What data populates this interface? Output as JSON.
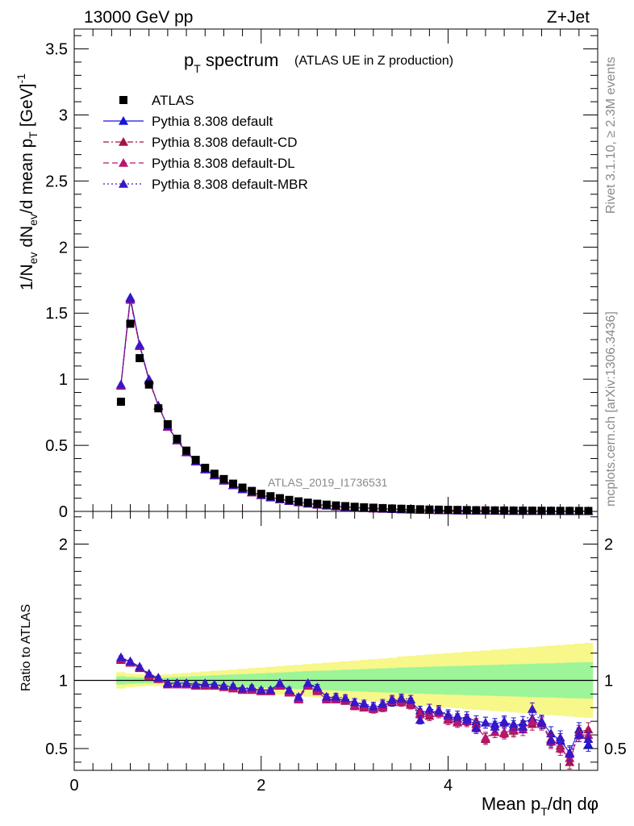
{
  "header": {
    "energy_label": "13000 GeV pp",
    "process_label": "Z+Jet"
  },
  "side_texts": {
    "rivet": "Rivet 3.1.10, ≥ 2.3M events",
    "mcplots": "mcplots.cern.ch [arXiv:1306.3436]"
  },
  "chart_data": [
    {
      "type": "scatter",
      "title_main": "p",
      "title_main_sub": "T",
      "title_main_rest": " spectrum",
      "title_note": "(ATLAS UE in Z production)",
      "ylabel": "1/N_ev dN_ev/d mean p_T [GeV]^-1",
      "xlabel": "Mean p_T/dη dφ",
      "watermark": "ATLAS_2019_I1736531",
      "xlim": [
        0,
        5.6
      ],
      "ylim": [
        0,
        3.65
      ],
      "y_ticks": [
        0,
        0.5,
        1,
        1.5,
        2,
        2.5,
        3,
        3.5
      ],
      "y_tick_labels": [
        "0",
        "0.5",
        "1",
        "1.5",
        "2",
        "2.5",
        "3",
        "3.5"
      ],
      "x_ticks": [
        0,
        2,
        4
      ],
      "x_tick_labels": [
        "0",
        "2",
        "4"
      ],
      "x": [
        0.5,
        0.6,
        0.7,
        0.8,
        0.9,
        1.0,
        1.1,
        1.2,
        1.3,
        1.4,
        1.5,
        1.6,
        1.7,
        1.8,
        1.9,
        2.0,
        2.1,
        2.2,
        2.3,
        2.4,
        2.5,
        2.6,
        2.7,
        2.8,
        2.9,
        3.0,
        3.1,
        3.2,
        3.3,
        3.4,
        3.5,
        3.6,
        3.7,
        3.8,
        3.9,
        4.0,
        4.1,
        4.2,
        4.3,
        4.4,
        4.5,
        4.6,
        4.7,
        4.8,
        4.9,
        5.0,
        5.1,
        5.2,
        5.3,
        5.4,
        5.5
      ],
      "series": [
        {
          "name": "ATLAS",
          "marker": "square",
          "color": "#000000",
          "values": [
            0.83,
            1.42,
            1.16,
            0.96,
            0.78,
            0.66,
            0.55,
            0.46,
            0.39,
            0.33,
            0.285,
            0.245,
            0.21,
            0.18,
            0.155,
            0.133,
            0.115,
            0.1,
            0.087,
            0.076,
            0.066,
            0.058,
            0.051,
            0.045,
            0.04,
            0.035,
            0.031,
            0.028,
            0.025,
            0.022,
            0.02,
            0.018,
            0.016,
            0.014,
            0.013,
            0.012,
            0.011,
            0.01,
            0.009,
            0.008,
            0.0075,
            0.007,
            0.0065,
            0.006,
            0.0055,
            0.005,
            0.0047,
            0.0044,
            0.0041,
            0.0038,
            0.0035
          ]
        },
        {
          "name": "Pythia 8.308 default",
          "marker": "triangle",
          "color": "#1515d8",
          "dash": "",
          "line": "solid",
          "values": [
            0.96,
            1.62,
            1.26,
            1.0,
            0.8,
            0.645,
            0.54,
            0.45,
            0.38,
            0.32,
            0.275,
            0.235,
            0.2,
            0.17,
            0.145,
            0.124,
            0.107,
            0.093,
            0.08,
            0.07,
            0.06,
            0.052,
            0.045,
            0.039,
            0.034,
            0.03,
            0.026,
            0.023,
            0.02,
            0.018,
            0.016,
            0.014,
            0.012,
            0.011,
            0.0095,
            0.0085,
            0.0075,
            0.0068,
            0.006,
            0.0054,
            0.0049,
            0.0044,
            0.004,
            0.0036,
            0.0033,
            0.003,
            0.0027,
            0.0024,
            0.0022,
            0.002,
            0.0018
          ]
        },
        {
          "name": "Pythia 8.308 default-CD",
          "marker": "triangle",
          "color": "#a0154a",
          "dash": "7,3,2,3",
          "line": "dash-dot",
          "values": [
            0.95,
            1.61,
            1.25,
            0.995,
            0.8,
            0.642,
            0.538,
            0.448,
            0.378,
            0.318,
            0.273,
            0.233,
            0.198,
            0.168,
            0.144,
            0.123,
            0.106,
            0.092,
            0.079,
            0.069,
            0.059,
            0.051,
            0.044,
            0.038,
            0.033,
            0.029,
            0.025,
            0.022,
            0.019,
            0.017,
            0.015,
            0.013,
            0.012,
            0.01,
            0.009,
            0.008,
            0.007,
            0.0064,
            0.0056,
            0.005,
            0.0046,
            0.0041,
            0.0037,
            0.0034,
            0.0031,
            0.0028,
            0.0025,
            0.0022,
            0.002,
            0.0019,
            0.0017
          ]
        },
        {
          "name": "Pythia 8.308 default-DL",
          "marker": "triangle",
          "color": "#b8166e",
          "dash": "7,4",
          "line": "dashed",
          "values": [
            0.95,
            1.6,
            1.25,
            0.99,
            0.8,
            0.64,
            0.537,
            0.447,
            0.377,
            0.317,
            0.272,
            0.232,
            0.197,
            0.167,
            0.143,
            0.122,
            0.105,
            0.091,
            0.078,
            0.068,
            0.058,
            0.05,
            0.044,
            0.038,
            0.033,
            0.028,
            0.025,
            0.022,
            0.019,
            0.017,
            0.015,
            0.013,
            0.011,
            0.01,
            0.009,
            0.008,
            0.007,
            0.0063,
            0.0055,
            0.0049,
            0.0045,
            0.004,
            0.0036,
            0.0033,
            0.003,
            0.0027,
            0.0024,
            0.0021,
            0.002,
            0.0018,
            0.0017
          ]
        },
        {
          "name": "Pythia 8.308 default-MBR",
          "marker": "triangle",
          "color": "#3a16c8",
          "dash": "2,3",
          "line": "dotted",
          "values": [
            0.96,
            1.61,
            1.26,
            1.0,
            0.8,
            0.644,
            0.539,
            0.449,
            0.379,
            0.319,
            0.274,
            0.234,
            0.199,
            0.169,
            0.145,
            0.124,
            0.107,
            0.093,
            0.08,
            0.07,
            0.06,
            0.052,
            0.045,
            0.039,
            0.034,
            0.03,
            0.026,
            0.023,
            0.02,
            0.018,
            0.016,
            0.014,
            0.012,
            0.011,
            0.0095,
            0.0085,
            0.0075,
            0.0068,
            0.006,
            0.0054,
            0.0049,
            0.0044,
            0.004,
            0.0036,
            0.0033,
            0.003,
            0.0027,
            0.0024,
            0.0022,
            0.002,
            0.0018
          ]
        }
      ]
    },
    {
      "type": "scatter",
      "ylabel": "Ratio to ATLAS",
      "ylim": [
        0.34,
        2.24
      ],
      "xlim": [
        0,
        5.6
      ],
      "y_ticks": [
        0.5,
        1,
        2
      ],
      "y_tick_labels": [
        "0.5",
        "1",
        "2"
      ],
      "reference_line": 1,
      "band_colors": {
        "stat": "#9cf598",
        "total": "#f7f78a"
      },
      "band_edges_x": [
        0.45,
        0.55,
        0.65,
        0.75,
        0.85,
        0.95,
        1.05,
        1.15,
        1.25,
        1.35,
        1.45,
        1.55,
        1.65,
        1.75,
        1.85,
        1.95,
        2.05,
        2.15,
        2.25,
        2.35,
        2.45,
        2.55,
        2.65,
        2.75,
        2.85,
        2.95,
        3.05,
        3.15,
        3.25,
        3.35,
        3.45,
        3.55,
        3.65,
        3.75,
        3.85,
        3.95,
        4.05,
        4.15,
        4.25,
        4.35,
        4.45,
        4.55,
        4.65,
        4.75,
        4.85,
        4.95,
        5.05,
        5.15,
        5.25,
        5.35,
        5.45,
        5.55
      ],
      "stat_band_halfwidth": [
        0.03,
        0.025,
        0.022,
        0.02,
        0.02,
        0.022,
        0.025,
        0.028,
        0.031,
        0.034,
        0.037,
        0.04,
        0.043,
        0.046,
        0.049,
        0.052,
        0.055,
        0.058,
        0.061,
        0.064,
        0.067,
        0.07,
        0.072,
        0.075,
        0.078,
        0.08,
        0.083,
        0.086,
        0.088,
        0.09,
        0.094,
        0.096,
        0.098,
        0.1,
        0.102,
        0.104,
        0.106,
        0.108,
        0.11,
        0.112,
        0.114,
        0.116,
        0.118,
        0.12,
        0.122,
        0.124,
        0.126,
        0.128,
        0.13,
        0.132,
        0.134
      ],
      "total_band_halfwidth": [
        0.06,
        0.05,
        0.045,
        0.042,
        0.042,
        0.045,
        0.05,
        0.055,
        0.06,
        0.065,
        0.07,
        0.075,
        0.08,
        0.085,
        0.09,
        0.095,
        0.1,
        0.105,
        0.11,
        0.115,
        0.12,
        0.125,
        0.13,
        0.135,
        0.14,
        0.145,
        0.15,
        0.155,
        0.16,
        0.165,
        0.175,
        0.18,
        0.185,
        0.19,
        0.195,
        0.2,
        0.205,
        0.21,
        0.215,
        0.22,
        0.225,
        0.23,
        0.235,
        0.24,
        0.245,
        0.25,
        0.255,
        0.26,
        0.265,
        0.27,
        0.275
      ],
      "series": [
        {
          "name": "Pythia 8.308 default",
          "values": [
            1.16,
            1.14,
            1.1,
            1.04,
            1.02,
            0.98,
            0.98,
            0.98,
            0.97,
            0.97,
            0.97,
            0.96,
            0.95,
            0.94,
            0.94,
            0.93,
            0.93,
            0.98,
            0.92,
            0.87,
            0.98,
            0.94,
            0.88,
            0.87,
            0.85,
            0.84,
            0.82,
            0.8,
            0.82,
            0.84,
            0.86,
            0.84,
            0.78,
            0.76,
            0.78,
            0.74,
            0.72,
            0.73,
            0.7,
            0.69,
            0.68,
            0.7,
            0.66,
            0.69,
            0.72,
            0.7,
            0.61,
            0.56,
            0.47,
            0.64,
            0.53
          ],
          "errors": [
            0.01,
            0.01,
            0.01,
            0.01,
            0.01,
            0.01,
            0.01,
            0.01,
            0.01,
            0.01,
            0.01,
            0.01,
            0.01,
            0.01,
            0.015,
            0.015,
            0.015,
            0.02,
            0.02,
            0.02,
            0.02,
            0.02,
            0.02,
            0.025,
            0.025,
            0.025,
            0.025,
            0.03,
            0.03,
            0.03,
            0.03,
            0.03,
            0.03,
            0.035,
            0.035,
            0.035,
            0.035,
            0.04,
            0.04,
            0.04,
            0.04,
            0.04,
            0.045,
            0.045,
            0.045,
            0.045,
            0.05,
            0.05,
            0.05,
            0.05,
            0.05
          ]
        },
        {
          "name": "Pythia 8.308 default-CD",
          "values": [
            1.15,
            1.13,
            1.09,
            1.04,
            1.01,
            0.97,
            0.98,
            0.97,
            0.96,
            0.97,
            0.96,
            0.96,
            0.95,
            0.93,
            0.93,
            0.92,
            0.92,
            0.97,
            0.91,
            0.86,
            0.97,
            0.93,
            0.87,
            0.86,
            0.85,
            0.82,
            0.81,
            0.79,
            0.81,
            0.86,
            0.85,
            0.83,
            0.76,
            0.74,
            0.77,
            0.72,
            0.7,
            0.71,
            0.68,
            0.57,
            0.62,
            0.62,
            0.63,
            0.66,
            0.68,
            0.69,
            0.57,
            0.52,
            0.4,
            0.62,
            0.64
          ],
          "errors": [
            0.01,
            0.01,
            0.01,
            0.01,
            0.01,
            0.01,
            0.01,
            0.01,
            0.01,
            0.01,
            0.01,
            0.01,
            0.01,
            0.01,
            0.015,
            0.015,
            0.015,
            0.02,
            0.02,
            0.02,
            0.02,
            0.02,
            0.02,
            0.025,
            0.025,
            0.025,
            0.025,
            0.03,
            0.03,
            0.03,
            0.03,
            0.03,
            0.03,
            0.035,
            0.035,
            0.035,
            0.035,
            0.04,
            0.04,
            0.04,
            0.04,
            0.04,
            0.045,
            0.045,
            0.045,
            0.045,
            0.05,
            0.05,
            0.05,
            0.05,
            0.05
          ]
        },
        {
          "name": "Pythia 8.308 default-DL",
          "values": [
            1.16,
            1.13,
            1.1,
            1.03,
            1.01,
            0.98,
            0.97,
            0.97,
            0.96,
            0.96,
            0.96,
            0.95,
            0.94,
            0.93,
            0.93,
            0.92,
            0.92,
            0.96,
            0.91,
            0.86,
            0.96,
            0.92,
            0.86,
            0.86,
            0.86,
            0.81,
            0.8,
            0.79,
            0.8,
            0.85,
            0.84,
            0.82,
            0.75,
            0.76,
            0.76,
            0.71,
            0.69,
            0.7,
            0.66,
            0.58,
            0.62,
            0.61,
            0.64,
            0.64,
            0.7,
            0.68,
            0.55,
            0.5,
            0.43,
            0.6,
            0.6
          ],
          "errors": [
            0.01,
            0.01,
            0.01,
            0.01,
            0.01,
            0.01,
            0.01,
            0.01,
            0.01,
            0.01,
            0.01,
            0.01,
            0.01,
            0.01,
            0.015,
            0.015,
            0.015,
            0.02,
            0.02,
            0.02,
            0.02,
            0.02,
            0.02,
            0.025,
            0.025,
            0.025,
            0.025,
            0.03,
            0.03,
            0.03,
            0.03,
            0.03,
            0.03,
            0.035,
            0.035,
            0.035,
            0.035,
            0.04,
            0.04,
            0.04,
            0.04,
            0.04,
            0.045,
            0.045,
            0.045,
            0.045,
            0.05,
            0.05,
            0.05,
            0.05,
            0.05
          ]
        },
        {
          "name": "Pythia 8.308 default-MBR",
          "values": [
            1.17,
            1.14,
            1.1,
            1.05,
            1.02,
            0.98,
            0.98,
            0.98,
            0.97,
            0.98,
            0.97,
            0.96,
            0.96,
            0.94,
            0.95,
            0.93,
            0.93,
            0.98,
            0.93,
            0.88,
            0.98,
            0.95,
            0.88,
            0.88,
            0.87,
            0.84,
            0.83,
            0.81,
            0.83,
            0.86,
            0.87,
            0.86,
            0.71,
            0.79,
            0.78,
            0.75,
            0.74,
            0.71,
            0.65,
            0.69,
            0.66,
            0.69,
            0.68,
            0.66,
            0.79,
            0.69,
            0.56,
            0.58,
            0.46,
            0.6,
            0.57
          ],
          "errors": [
            0.01,
            0.01,
            0.01,
            0.01,
            0.01,
            0.01,
            0.01,
            0.01,
            0.01,
            0.01,
            0.01,
            0.01,
            0.01,
            0.01,
            0.015,
            0.015,
            0.015,
            0.02,
            0.02,
            0.02,
            0.02,
            0.02,
            0.02,
            0.025,
            0.025,
            0.025,
            0.025,
            0.03,
            0.03,
            0.03,
            0.03,
            0.03,
            0.03,
            0.035,
            0.035,
            0.035,
            0.035,
            0.04,
            0.04,
            0.04,
            0.04,
            0.04,
            0.045,
            0.045,
            0.045,
            0.045,
            0.05,
            0.05,
            0.05,
            0.05,
            0.05
          ]
        }
      ]
    }
  ]
}
